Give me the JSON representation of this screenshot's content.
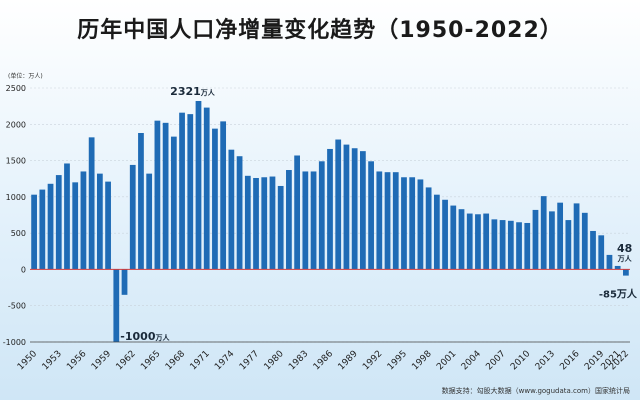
{
  "title": "历年中国人口净增量变化趋势（1950-2022）",
  "source": "数据支持：勾股大数据（www.gogudata.com）国家统计局",
  "chart_data": {
    "type": "bar",
    "unit_label": "(单位：万人)",
    "ylim": [
      -1000,
      2500
    ],
    "yticks": [
      -1000,
      -500,
      0,
      500,
      1000,
      1500,
      2000,
      2500
    ],
    "x": [
      1950,
      1951,
      1952,
      1953,
      1954,
      1955,
      1956,
      1957,
      1958,
      1959,
      1960,
      1961,
      1962,
      1963,
      1964,
      1965,
      1966,
      1967,
      1968,
      1969,
      1970,
      1971,
      1972,
      1973,
      1974,
      1975,
      1976,
      1977,
      1978,
      1979,
      1980,
      1981,
      1982,
      1983,
      1984,
      1985,
      1986,
      1987,
      1988,
      1989,
      1990,
      1991,
      1992,
      1993,
      1994,
      1995,
      1996,
      1997,
      1998,
      1999,
      2000,
      2001,
      2002,
      2003,
      2004,
      2005,
      2006,
      2007,
      2008,
      2009,
      2010,
      2011,
      2012,
      2013,
      2014,
      2015,
      2016,
      2017,
      2018,
      2019,
      2020,
      2021,
      2022
    ],
    "values": [
      1030,
      1100,
      1180,
      1300,
      1460,
      1200,
      1350,
      1820,
      1320,
      1210,
      -1000,
      -350,
      1440,
      1880,
      1320,
      2050,
      2020,
      1830,
      2160,
      2140,
      2321,
      2230,
      1940,
      2040,
      1650,
      1560,
      1290,
      1260,
      1270,
      1280,
      1150,
      1370,
      1570,
      1350,
      1350,
      1490,
      1660,
      1790,
      1720,
      1670,
      1630,
      1490,
      1350,
      1340,
      1340,
      1270,
      1270,
      1240,
      1130,
      1030,
      960,
      880,
      830,
      770,
      760,
      770,
      690,
      680,
      670,
      650,
      640,
      820,
      1010,
      800,
      920,
      680,
      910,
      780,
      530,
      470,
      200,
      48,
      -85
    ],
    "xticks": [
      1950,
      1953,
      1956,
      1959,
      1962,
      1965,
      1968,
      1971,
      1974,
      1977,
      1980,
      1983,
      1986,
      1989,
      1992,
      1995,
      1998,
      2001,
      2004,
      2007,
      2010,
      2013,
      2016,
      2019,
      2021,
      2022
    ],
    "annotations": [
      {
        "x": 1970,
        "value": 2321,
        "text": "2321",
        "unit": "万人"
      },
      {
        "x": 1960,
        "value": -1000,
        "text": "-1000",
        "unit": "万人"
      },
      {
        "x": 2021,
        "value": 48,
        "text": "48",
        "unit": "万人"
      },
      {
        "x": 2022,
        "value": -85,
        "text": "-85万人",
        "unit": ""
      }
    ],
    "colors": {
      "bar": "#1f6bb5",
      "axis": "#444444",
      "zero_line": "#d23c3c",
      "grid": "#c9d3dc"
    }
  }
}
